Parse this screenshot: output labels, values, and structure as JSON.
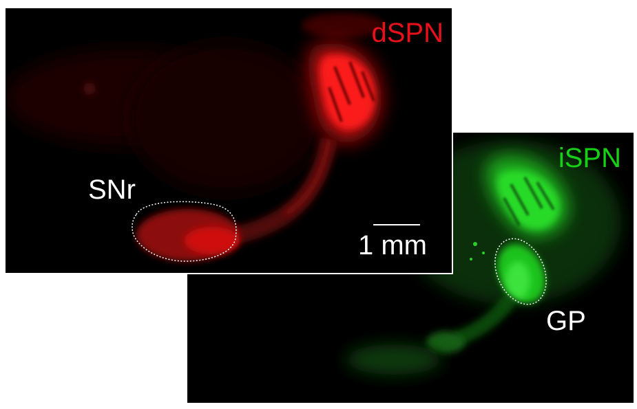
{
  "panels": {
    "dspn": {
      "channel_label": "dSPN",
      "channel_color": "#e8101a",
      "region_label": "SNr",
      "scale_bar_label": "1 mm"
    },
    "ispn": {
      "channel_label": "iSPN",
      "channel_color": "#16d116",
      "region_label": "GP"
    }
  },
  "annotation_color": "#ffffff",
  "background_color": "#000000"
}
